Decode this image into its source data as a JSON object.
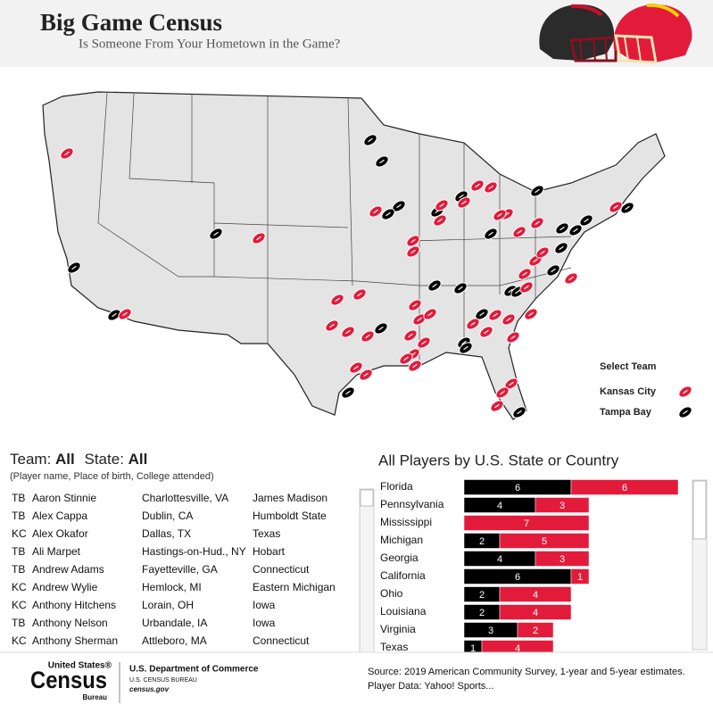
{
  "header": {
    "title": "Big Game Census",
    "subtitle": "Is Someone From Your Hometown in the Game?"
  },
  "map": {
    "legend_title": "Select Team"
  },
  "table": {
    "team_label": "Team:",
    "team_value": "All",
    "state_label": "State:",
    "state_value": "All",
    "subtitle": "(Player name, Place of birth, College attended)",
    "rows": [
      [
        "TB",
        "Aaron Stinnie",
        "Charlottesville, VA",
        "James Madison"
      ],
      [
        "TB",
        "Alex Cappa",
        "Dublin, CA",
        "Humboldt State"
      ],
      [
        "KC",
        "Alex Okafor",
        "Dallas, TX",
        "Texas"
      ],
      [
        "TB",
        "Ali Marpet",
        "Hastings-on-Hud., NY",
        "Hobart"
      ],
      [
        "TB",
        "Andrew Adams",
        "Fayetteville, GA",
        "Connecticut"
      ],
      [
        "KC",
        "Andrew Wylie",
        "Hemlock, MI",
        "Eastern Michigan"
      ],
      [
        "KC",
        "Anthony Hitchens",
        "Lorain, OH",
        "Iowa"
      ],
      [
        "TB",
        "Anthony Nelson",
        "Urbandale, IA",
        "Iowa"
      ],
      [
        "KC",
        "Anthony Sherman",
        "Attleboro, MA",
        "Connecticut"
      ]
    ]
  },
  "chart_data": {
    "type": "bar",
    "orientation": "horizontal",
    "stacked": true,
    "title": "All Players by U.S. State or Country",
    "categories": [
      "Florida",
      "Pennsylvania",
      "Mississippi",
      "Michigan",
      "Georgia",
      "California",
      "Ohio",
      "Louisiana",
      "Virginia",
      "Texas"
    ],
    "series": [
      {
        "name": "Tampa Bay",
        "color": "#000000",
        "values": [
          6,
          4,
          null,
          2,
          4,
          6,
          2,
          2,
          3,
          1
        ]
      },
      {
        "name": "Kansas City",
        "color": "#e31b3b",
        "values": [
          6,
          3,
          7,
          5,
          3,
          1,
          4,
          4,
          2,
          4
        ]
      }
    ]
  },
  "footer": {
    "logo_top": "United States®",
    "logo_main": "Census",
    "logo_sub": "Bureau",
    "department": "U.S. Department of Commerce",
    "bureau": "U.S. CENSUS BUREAU",
    "website": "census.gov",
    "source": [
      "Source: 2019 American Community Survey, 1-year and 5-year estimates.",
      "Player Data: Yahoo! Sports..."
    ]
  }
}
